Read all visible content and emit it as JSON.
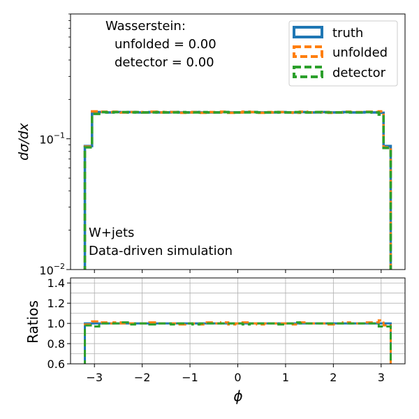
{
  "chart_data": [
    {
      "type": "line",
      "panel": "main",
      "ylabel": "dσ/dx",
      "yscale": "log",
      "ylim": [
        0.01,
        0.9
      ],
      "xlim": [
        -3.5,
        3.5
      ],
      "yticks": [
        {
          "value": 0.1,
          "label": "10",
          "exp": "−1"
        },
        {
          "value": 0.01,
          "label": "10",
          "exp": "−2"
        }
      ],
      "annotation_wasserstein": [
        "Wasserstein:",
        "unfolded = 0.00",
        "detector = 0.00"
      ],
      "annotation_process": [
        "W+jets",
        "Data-driven simulation"
      ],
      "legend": {
        "placement": "top-right",
        "entries": [
          {
            "label": "truth",
            "color": "#1f77b4",
            "style": "solid"
          },
          {
            "label": "unfolded",
            "color": "#ff7f0e",
            "style": "dashed"
          },
          {
            "label": "detector",
            "color": "#2ca02c",
            "style": "dashed"
          }
        ]
      },
      "bin_edges": [
        -3.2,
        -3.05,
        -2.9,
        -2.75,
        -2.6,
        -2.45,
        -2.3,
        -2.15,
        -2.0,
        -1.85,
        -1.7,
        -1.55,
        -1.4,
        -1.25,
        -1.1,
        -0.95,
        -0.8,
        -0.65,
        -0.5,
        -0.35,
        -0.2,
        -0.05,
        0.1,
        0.25,
        0.4,
        0.55,
        0.7,
        0.85,
        1.0,
        1.15,
        1.3,
        1.45,
        1.6,
        1.75,
        1.9,
        2.05,
        2.2,
        2.35,
        2.5,
        2.65,
        2.8,
        2.95,
        3.05,
        3.2
      ],
      "series": [
        {
          "name": "truth",
          "color": "#1f77b4",
          "dash": "none",
          "values": [
            0.088,
            0.16,
            0.16,
            0.159,
            0.16,
            0.159,
            0.16,
            0.159,
            0.159,
            0.16,
            0.159,
            0.159,
            0.16,
            0.159,
            0.159,
            0.16,
            0.159,
            0.159,
            0.159,
            0.16,
            0.159,
            0.159,
            0.16,
            0.16,
            0.159,
            0.159,
            0.159,
            0.16,
            0.159,
            0.159,
            0.16,
            0.159,
            0.159,
            0.16,
            0.159,
            0.159,
            0.16,
            0.159,
            0.159,
            0.16,
            0.159,
            0.158,
            0.088
          ]
        },
        {
          "name": "unfolded",
          "color": "#ff7f0e",
          "dash": "10,5",
          "values": [
            0.087,
            0.162,
            0.161,
            0.16,
            0.161,
            0.159,
            0.16,
            0.16,
            0.159,
            0.161,
            0.159,
            0.16,
            0.16,
            0.158,
            0.159,
            0.16,
            0.158,
            0.16,
            0.159,
            0.161,
            0.158,
            0.159,
            0.161,
            0.16,
            0.158,
            0.16,
            0.159,
            0.16,
            0.159,
            0.158,
            0.161,
            0.159,
            0.16,
            0.16,
            0.158,
            0.159,
            0.161,
            0.16,
            0.16,
            0.161,
            0.16,
            0.162,
            0.086
          ]
        },
        {
          "name": "detector",
          "color": "#2ca02c",
          "dash": "10,5",
          "values": [
            0.086,
            0.155,
            0.16,
            0.159,
            0.16,
            0.16,
            0.159,
            0.16,
            0.159,
            0.159,
            0.16,
            0.159,
            0.159,
            0.16,
            0.159,
            0.159,
            0.16,
            0.159,
            0.159,
            0.16,
            0.159,
            0.159,
            0.159,
            0.16,
            0.159,
            0.159,
            0.16,
            0.159,
            0.159,
            0.16,
            0.159,
            0.159,
            0.16,
            0.159,
            0.159,
            0.159,
            0.16,
            0.159,
            0.159,
            0.16,
            0.159,
            0.153,
            0.085
          ]
        }
      ]
    },
    {
      "type": "line",
      "panel": "ratio",
      "xlabel": "ϕ",
      "ylabel": "Ratios",
      "ylim": [
        0.6,
        1.45
      ],
      "yticks": [
        0.6,
        0.8,
        1.0,
        1.2,
        1.4
      ],
      "ytick_labels": [
        "0.6",
        "0.8",
        "1.0",
        "1.2",
        "1.4"
      ],
      "xticks": [
        -3,
        -2,
        -1,
        0,
        1,
        2,
        3
      ],
      "xtick_labels": [
        "−3",
        "−2",
        "−1",
        "0",
        "1",
        "2",
        "3"
      ],
      "grid": true,
      "series": [
        {
          "name": "truth",
          "color": "#1f77b4",
          "dash": "none",
          "values": [
            1.0,
            1.0,
            1.0,
            1.0,
            1.0,
            1.0,
            1.0,
            1.0,
            1.0,
            1.0,
            1.0,
            1.0,
            1.0,
            1.0,
            1.0,
            1.0,
            1.0,
            1.0,
            1.0,
            1.0,
            1.0,
            1.0,
            1.0,
            1.0,
            1.0,
            1.0,
            1.0,
            1.0,
            1.0,
            1.0,
            1.0,
            1.0,
            1.0,
            1.0,
            1.0,
            1.0,
            1.0,
            1.0,
            1.0,
            1.0,
            1.0,
            1.0,
            1.0
          ]
        },
        {
          "name": "unfolded",
          "color": "#ff7f0e",
          "dash": "10,5",
          "values": [
            0.99,
            1.02,
            1.01,
            1.0,
            1.01,
            1.0,
            1.0,
            1.0,
            1.0,
            1.01,
            1.0,
            1.0,
            1.0,
            0.99,
            1.0,
            1.0,
            0.99,
            1.01,
            1.0,
            1.01,
            0.99,
            1.0,
            1.01,
            1.0,
            0.99,
            1.0,
            1.0,
            1.0,
            1.0,
            0.99,
            1.01,
            1.0,
            1.0,
            1.0,
            0.99,
            1.0,
            1.01,
            1.0,
            1.0,
            1.01,
            1.01,
            1.03,
            0.98
          ]
        },
        {
          "name": "detector",
          "color": "#2ca02c",
          "dash": "10,5",
          "values": [
            0.98,
            0.97,
            1.0,
            1.0,
            1.0,
            1.01,
            0.99,
            1.0,
            1.0,
            0.99,
            1.0,
            1.0,
            0.99,
            1.0,
            1.0,
            0.99,
            1.0,
            1.0,
            1.0,
            1.0,
            1.0,
            1.0,
            0.99,
            1.0,
            1.0,
            1.0,
            1.0,
            0.99,
            1.0,
            1.01,
            1.0,
            1.0,
            1.0,
            1.0,
            1.0,
            1.0,
            1.0,
            1.0,
            1.0,
            1.0,
            1.0,
            0.97,
            0.97
          ]
        }
      ]
    }
  ]
}
